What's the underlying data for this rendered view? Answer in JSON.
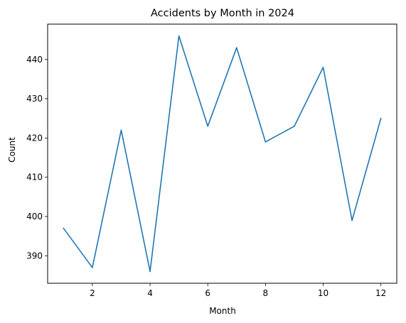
{
  "chart_data": {
    "type": "line",
    "title": "Accidents by Month in 2024",
    "xlabel": "Month",
    "ylabel": "Count",
    "x": [
      1,
      2,
      3,
      4,
      5,
      6,
      7,
      8,
      9,
      10,
      11,
      12
    ],
    "series": [
      {
        "values": [
          397,
          387,
          422,
          386,
          446,
          423,
          443,
          419,
          423,
          438,
          399,
          425
        ]
      }
    ],
    "xlim": [
      0.45,
      12.55
    ],
    "ylim": [
      383,
      449
    ],
    "xticks": [
      2,
      4,
      6,
      8,
      10,
      12
    ],
    "yticks": [
      390,
      400,
      410,
      420,
      430,
      440
    ],
    "grid": false,
    "line_color": "#1f77b4"
  }
}
